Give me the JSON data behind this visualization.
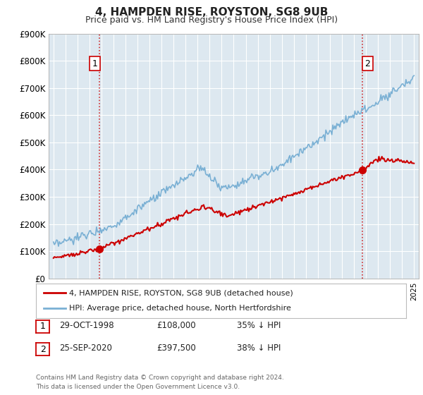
{
  "title": "4, HAMPDEN RISE, ROYSTON, SG8 9UB",
  "subtitle": "Price paid vs. HM Land Registry's House Price Index (HPI)",
  "ylim": [
    0,
    900000
  ],
  "yticks": [
    0,
    100000,
    200000,
    300000,
    400000,
    500000,
    600000,
    700000,
    800000,
    900000
  ],
  "ytick_labels": [
    "£0",
    "£100K",
    "£200K",
    "£300K",
    "£400K",
    "£500K",
    "£600K",
    "£700K",
    "£800K",
    "£900K"
  ],
  "xlim_start": 1994.6,
  "xlim_end": 2025.4,
  "sale1_x": 1998.83,
  "sale1_y": 108000,
  "sale1_label": "1",
  "sale2_x": 2020.73,
  "sale2_y": 397500,
  "sale2_label": "2",
  "sale_color": "#cc0000",
  "hpi_color": "#7ab0d4",
  "vline_color": "#cc0000",
  "chart_bg": "#dde8f0",
  "legend_label_sale": "4, HAMPDEN RISE, ROYSTON, SG8 9UB (detached house)",
  "legend_label_hpi": "HPI: Average price, detached house, North Hertfordshire",
  "table_rows": [
    {
      "num": "1",
      "date": "29-OCT-1998",
      "price": "£108,000",
      "hpi": "35% ↓ HPI"
    },
    {
      "num": "2",
      "date": "25-SEP-2020",
      "price": "£397,500",
      "hpi": "38% ↓ HPI"
    }
  ],
  "footer": "Contains HM Land Registry data © Crown copyright and database right 2024.\nThis data is licensed under the Open Government Licence v3.0.",
  "background_color": "#ffffff",
  "grid_color": "#ffffff"
}
